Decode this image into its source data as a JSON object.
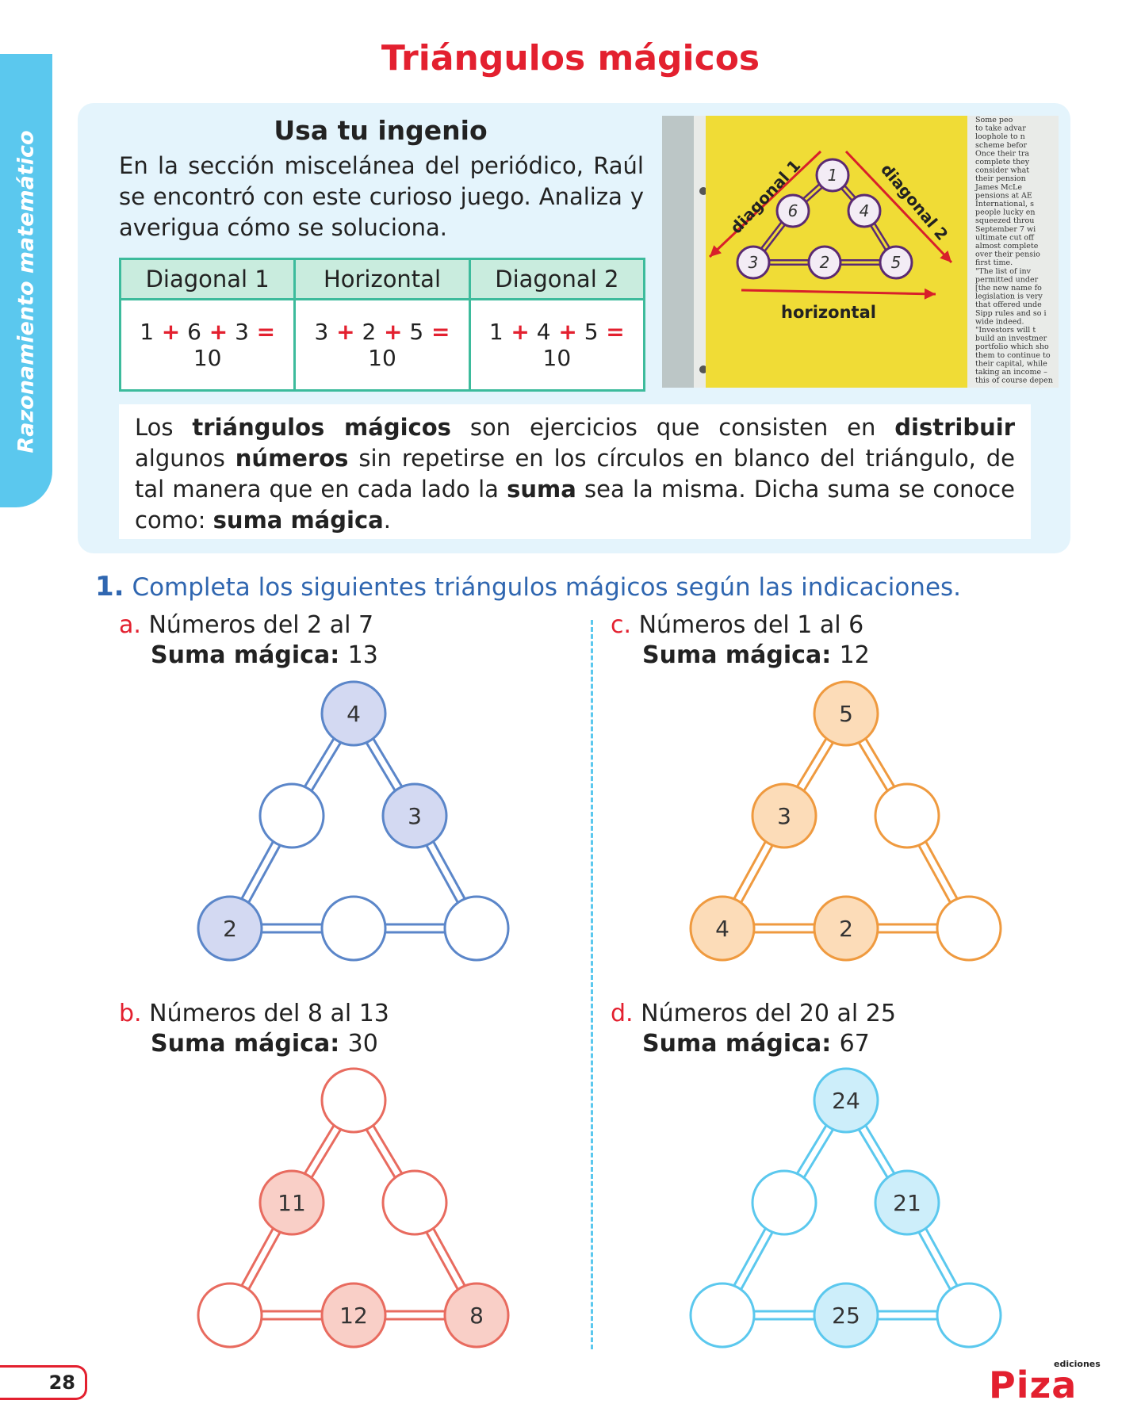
{
  "side_tab": "Razonamiento matemático",
  "title": "Triángulos mágicos",
  "intro": {
    "heading": "Usa tu ingenio",
    "text": "En la sección miscelánea del periódico, Raúl se encontró con este curioso juego. Analiza y averigua cómo se soluciona.",
    "table": {
      "headers": [
        "Diagonal 1",
        "Horizontal",
        "Diagonal 2"
      ],
      "rows": [
        [
          [
            "1",
            "6",
            "3",
            "10"
          ],
          [
            "3",
            "2",
            "5",
            "10"
          ],
          [
            "1",
            "4",
            "5",
            "10"
          ]
        ]
      ],
      "plus": "+",
      "equals": "="
    },
    "photo": {
      "labels": [
        "diagonal 1",
        "diagonal 2",
        "horizontal"
      ],
      "circles": [
        "1",
        "6",
        "4",
        "3",
        "2",
        "5"
      ],
      "newspaper_lines": [
        "Some peo",
        "to take advar",
        "loophole to n",
        "scheme befor",
        "Once their tra",
        "complete they",
        "consider what",
        "their pension",
        "James McLe",
        "pensions at AE",
        "International, s",
        "people lucky en",
        "squeezed throu",
        "September 7 wi",
        "ultimate cut off",
        "almost complete",
        "over their pensio",
        "first time.",
        "\"The list of inv",
        "permitted under",
        "[the new name fo",
        "legislation is very",
        "that offered unde",
        "Sipp rules and so i",
        "wide indeed.",
        "\"Investors will t",
        "build an investmer",
        "portfolio which sho",
        "them to continue to",
        "their capital, while",
        "taking an income –",
        "this of course depen"
      ]
    }
  },
  "definition": {
    "parts": [
      {
        "t": "Los ",
        "b": false
      },
      {
        "t": "triángulos mágicos",
        "b": true
      },
      {
        "t": " son ejercicios que consisten en ",
        "b": false
      },
      {
        "t": "distribuir",
        "b": true
      },
      {
        "t": " algunos ",
        "b": false
      },
      {
        "t": "números",
        "b": true
      },
      {
        "t": " sin repetirse en los círculos en blanco del triángulo, de tal manera que en cada lado la ",
        "b": false
      },
      {
        "t": "suma",
        "b": true
      },
      {
        "t": " sea la misma. Dicha suma se conoce como: ",
        "b": false
      },
      {
        "t": "suma mágica",
        "b": true
      },
      {
        "t": ".",
        "b": false
      }
    ]
  },
  "exercise": {
    "number": "1.",
    "instruction": "Completa los siguientes triángulos mágicos según las indicaciones.",
    "magic_label": "Suma mágica:",
    "items": [
      {
        "letter": "a.",
        "range": "Números del 2 al 7",
        "sum": "13",
        "color": "#5b86c9",
        "fill": "#d3d9f2",
        "circles": [
          "4",
          "",
          "3",
          "2",
          "",
          ""
        ]
      },
      {
        "letter": "b.",
        "range": "Números del 8 al 13",
        "sum": "30",
        "color": "#e86b5f",
        "fill": "#f9cfc7",
        "circles": [
          "",
          "11",
          "",
          "",
          "12",
          "8"
        ]
      },
      {
        "letter": "c.",
        "range": "Números del 1 al 6",
        "sum": "12",
        "color": "#ef9a3f",
        "fill": "#fcdcb8",
        "circles": [
          "5",
          "3",
          "",
          "4",
          "2",
          ""
        ]
      },
      {
        "letter": "d.",
        "range": "Números del 20 al 25",
        "sum": "67",
        "color": "#5bc8ee",
        "fill": "#cdeefa",
        "circles": [
          "24",
          "",
          "21",
          "",
          "25",
          ""
        ]
      }
    ]
  },
  "footer": {
    "page_number": "28",
    "logo_small": "ediciones",
    "logo_big": "Piza"
  }
}
